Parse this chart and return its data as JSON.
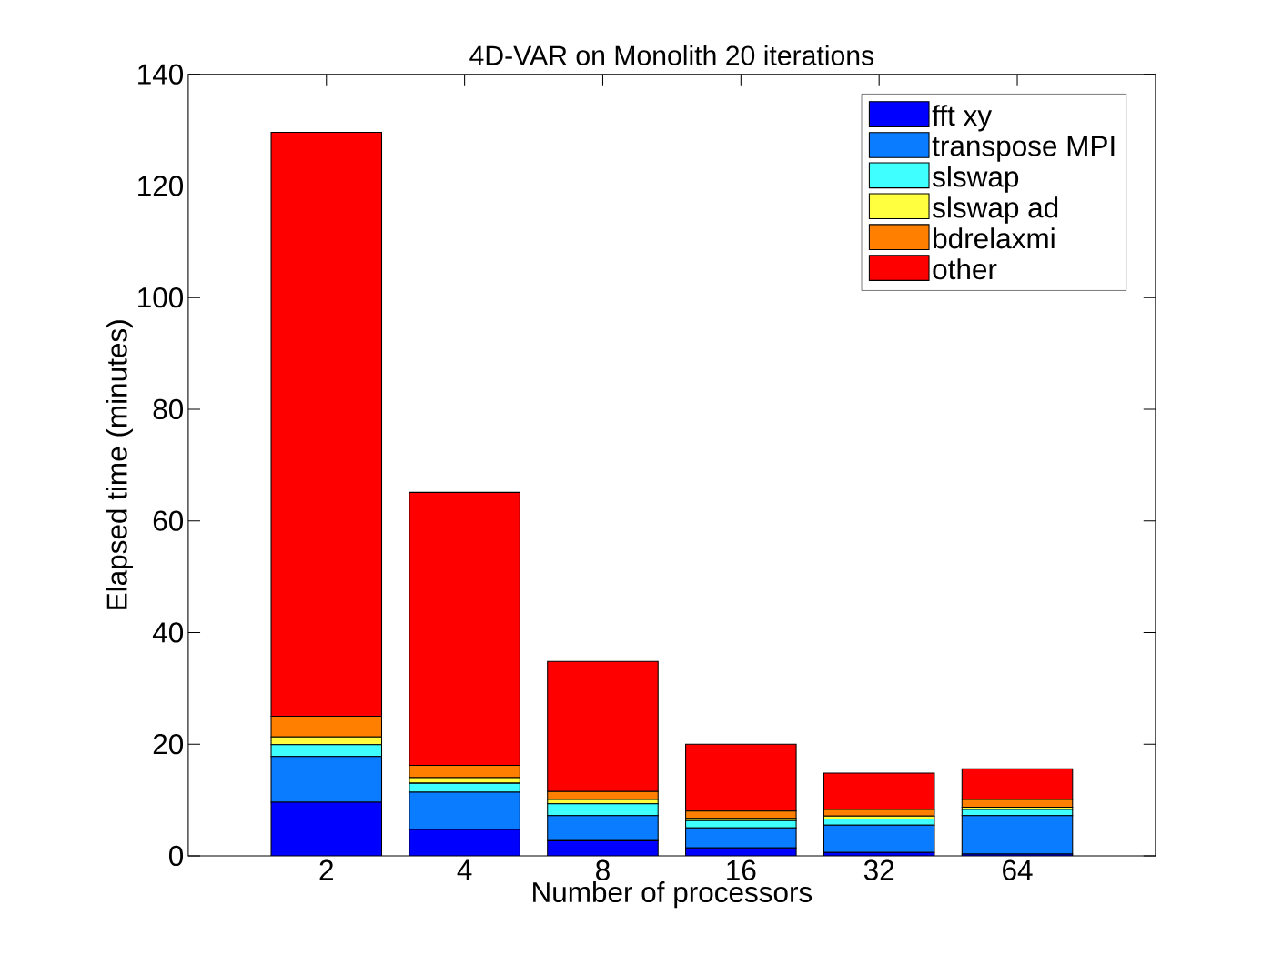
{
  "chart_data": {
    "type": "bar",
    "stacked": true,
    "title": "4D-VAR on Monolith 20 iterations",
    "xlabel": "Number of processors",
    "ylabel": "Elapsed time (minutes)",
    "categories": [
      "2",
      "4",
      "8",
      "16",
      "32",
      "64"
    ],
    "ylim": [
      0,
      140
    ],
    "yticks": [
      0,
      20,
      40,
      60,
      80,
      100,
      120,
      140
    ],
    "grid": false,
    "legend": "top right",
    "series": [
      {
        "name": "fft xy",
        "color": "#0000ff",
        "values": [
          9.6,
          4.7,
          2.7,
          1.4,
          0.6,
          0.3
        ]
      },
      {
        "name": "transpose MPI",
        "color": "#0a7cff",
        "values": [
          8.2,
          6.7,
          4.5,
          3.6,
          4.9,
          6.9
        ]
      },
      {
        "name": "slswap",
        "color": "#40ffff",
        "values": [
          2.1,
          1.6,
          2.1,
          1.3,
          1.1,
          1.1
        ]
      },
      {
        "name": "slswap ad",
        "color": "#ffff40",
        "values": [
          1.4,
          1.0,
          0.8,
          0.4,
          0.5,
          0.4
        ]
      },
      {
        "name": "bdrelaxmi",
        "color": "#ff8000",
        "values": [
          3.7,
          2.2,
          1.4,
          1.3,
          1.2,
          1.4
        ]
      },
      {
        "name": "other",
        "color": "#ff0000",
        "values": [
          104.6,
          48.9,
          23.3,
          12.0,
          6.5,
          5.5
        ]
      }
    ]
  }
}
